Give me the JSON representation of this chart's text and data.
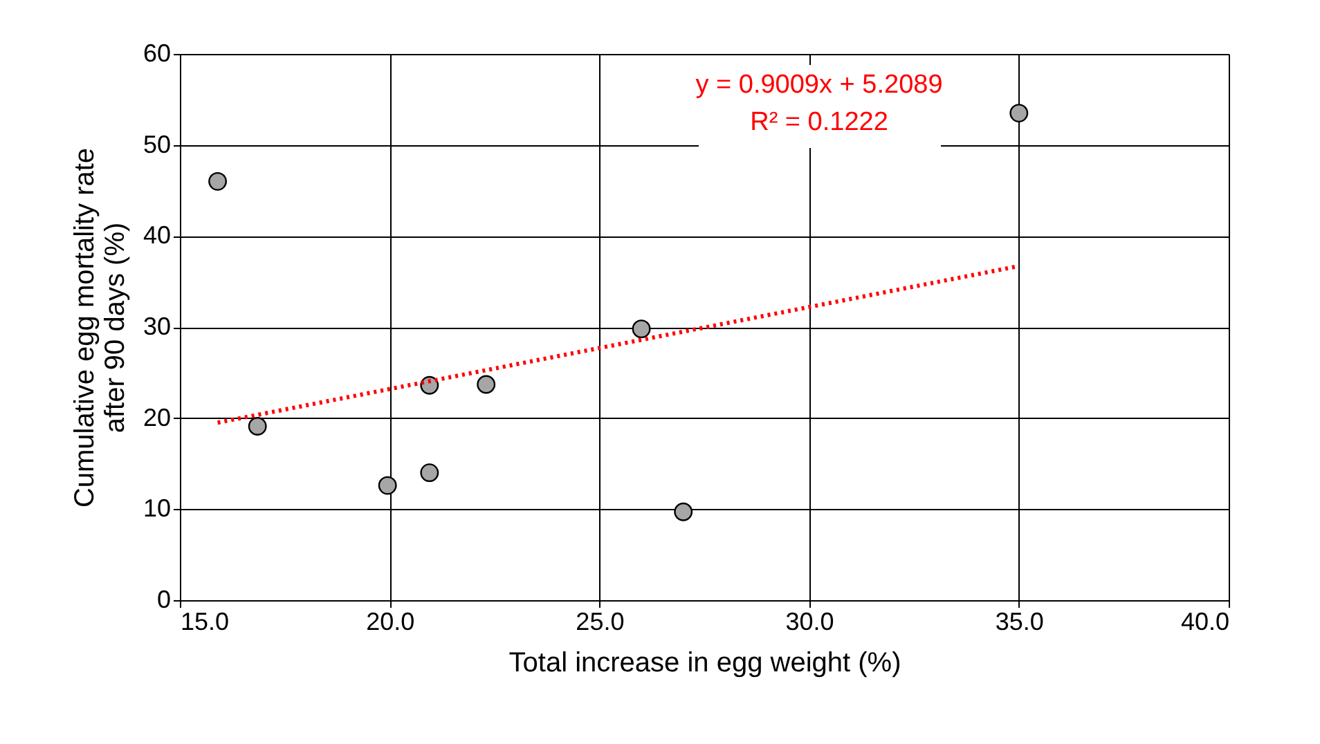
{
  "chart_data": {
    "type": "scatter",
    "xlabel": "Total increase in egg weight (%)",
    "ylabel": "Cumulative egg mortality rate after 90 days (%)",
    "x": [
      15.9,
      16.85,
      19.95,
      20.95,
      20.95,
      22.3,
      26.0,
      27.0,
      35.0
    ],
    "series": [
      {
        "color": "#a6a6a6",
        "marker": "circle",
        "values": [
          46.0,
          19.1,
          12.6,
          23.6,
          14.0,
          23.7,
          29.8,
          9.7,
          53.5
        ]
      },
      {
        "type": "line",
        "color": "#ff0000",
        "line_style": "dotted",
        "marker": "none",
        "x": [
          15.9,
          35.0
        ],
        "values": [
          19.5,
          36.7
        ]
      }
    ],
    "annotations": [
      "y = 0.9009x + 5.2089",
      "R² = 0.1222"
    ],
    "xlim": [
      15,
      40
    ],
    "xticks": [
      {
        "value": 15,
        "label": "15.0"
      },
      {
        "value": 20,
        "label": "20.0"
      },
      {
        "value": 25,
        "label": "25.0"
      },
      {
        "value": 30,
        "label": "30.0"
      },
      {
        "value": 35,
        "label": "35.0"
      },
      {
        "value": 40,
        "label": "40.0"
      }
    ],
    "ylim": [
      0,
      60
    ],
    "yticks": [
      0,
      10,
      20,
      30,
      40,
      50,
      60
    ],
    "grid": true
  }
}
